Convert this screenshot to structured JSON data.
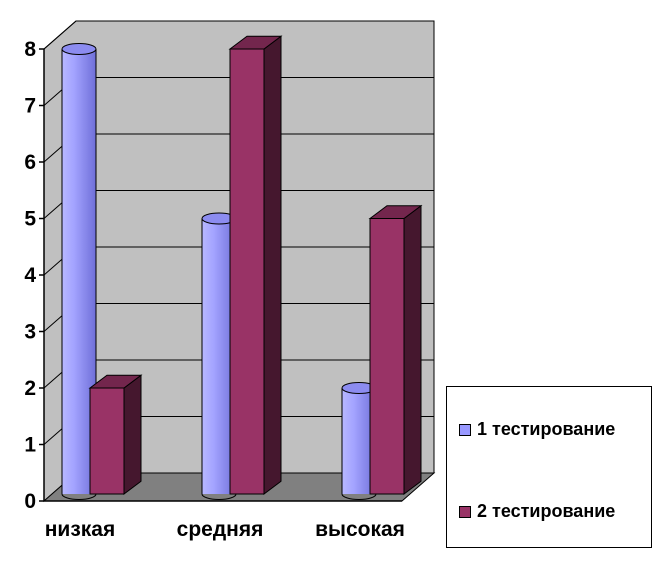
{
  "chart_data": {
    "type": "bar",
    "style": "3d-cylinder-and-box",
    "categories": [
      "низкая",
      "средняя",
      "высокая"
    ],
    "series": [
      {
        "name": "1 тестирование",
        "values": [
          8,
          5,
          2
        ],
        "color": "#9999ff",
        "shape": "cylinder"
      },
      {
        "name": "2 тестирование",
        "values": [
          2,
          8,
          5
        ],
        "color": "#993366",
        "shape": "box"
      }
    ],
    "ylim": [
      0,
      8
    ],
    "yticks": [
      0,
      1,
      2,
      3,
      4,
      5,
      6,
      7,
      8
    ],
    "grid": true,
    "wall_color": "#c0c0c0",
    "floor_color": "#808080",
    "legend_position": "right-bottom"
  }
}
